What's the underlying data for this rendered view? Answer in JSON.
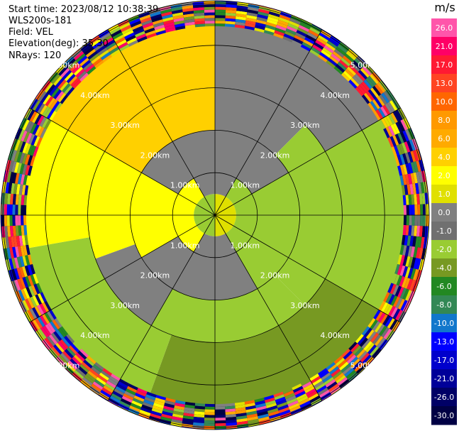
{
  "header": {
    "start_time": "Start time: 2023/08/12 10:38:39",
    "instrument": "WLS200s-181",
    "field": "Field: VEL",
    "elevation": "Elevation(deg): 35.30",
    "nrays": "NRays: 120"
  },
  "chart_data": {
    "type": "polar-ppi",
    "field": "VEL",
    "unit": "m/s",
    "n_rays": 120,
    "elevation_deg": 35.3,
    "range_rings_km": [
      1.0,
      2.0,
      3.0,
      4.0,
      5.0
    ],
    "ring_labels": [
      "1.00km",
      "2.00km",
      "3.00km",
      "4.00km",
      "5.00km"
    ],
    "max_range_km": 5.0,
    "azimuth_spokes_deg": [
      0,
      30,
      60,
      90,
      120,
      150,
      180,
      210,
      240,
      270,
      300,
      330
    ],
    "colorbar": {
      "title": "m/s",
      "ticks": [
        "26.0",
        "21.0",
        "17.0",
        "13.0",
        "10.0",
        "8.0",
        "6.0",
        "4.0",
        "2.0",
        "1.0",
        "0.0",
        "-1.0",
        "-2.0",
        "-4.0",
        "-6.0",
        "-8.0",
        "-10.0",
        "-13.0",
        "-17.0",
        "-21.0",
        "-26.0",
        "-30.0"
      ],
      "colors": [
        "#ff55aa",
        "#ff0066",
        "#ff1a33",
        "#ff4422",
        "#ff6600",
        "#ff9900",
        "#ffaa00",
        "#ffd000",
        "#ffff00",
        "#e0e000",
        "#808080",
        "#707070",
        "#99cc33",
        "#779922",
        "#228822",
        "#338855",
        "#1177cc",
        "#0000ff",
        "#0000cc",
        "#000099",
        "#000066",
        "#000044"
      ]
    },
    "regions": [
      {
        "r": [
          0.0,
          0.5
        ],
        "az_sectors": [
          [
            0,
            180,
            1.0
          ],
          [
            180,
            360,
            -2.0
          ]
        ]
      },
      {
        "r": [
          0.5,
          1.0
        ],
        "az_sectors": [
          [
            0,
            30,
            0.0
          ],
          [
            30,
            150,
            -2.0
          ],
          [
            150,
            210,
            0.0
          ],
          [
            210,
            330,
            2.0
          ],
          [
            330,
            360,
            0.0
          ]
        ]
      },
      {
        "r": [
          1.0,
          2.0
        ],
        "az_sectors": [
          [
            0,
            60,
            0.0
          ],
          [
            60,
            150,
            -2.0
          ],
          [
            150,
            240,
            0.0
          ],
          [
            240,
            300,
            2.0
          ],
          [
            300,
            360,
            0.0
          ]
        ]
      },
      {
        "r": [
          2.0,
          3.0
        ],
        "az_sectors": [
          [
            0,
            45,
            0.0
          ],
          [
            45,
            135,
            -2.0
          ],
          [
            135,
            210,
            -2.0
          ],
          [
            210,
            250,
            0.0
          ],
          [
            250,
            300,
            2.0
          ],
          [
            300,
            360,
            4.0
          ]
        ]
      },
      {
        "r": [
          3.0,
          4.5
        ],
        "az_sectors": [
          [
            0,
            60,
            0.0
          ],
          [
            60,
            120,
            -2.0
          ],
          [
            120,
            200,
            -4.0
          ],
          [
            200,
            260,
            -2.0
          ],
          [
            260,
            300,
            2.0
          ],
          [
            300,
            360,
            4.0
          ]
        ]
      },
      {
        "r": [
          4.5,
          5.1
        ],
        "az_sectors": [
          [
            0,
            360,
            -30.0
          ]
        ]
      }
    ]
  }
}
